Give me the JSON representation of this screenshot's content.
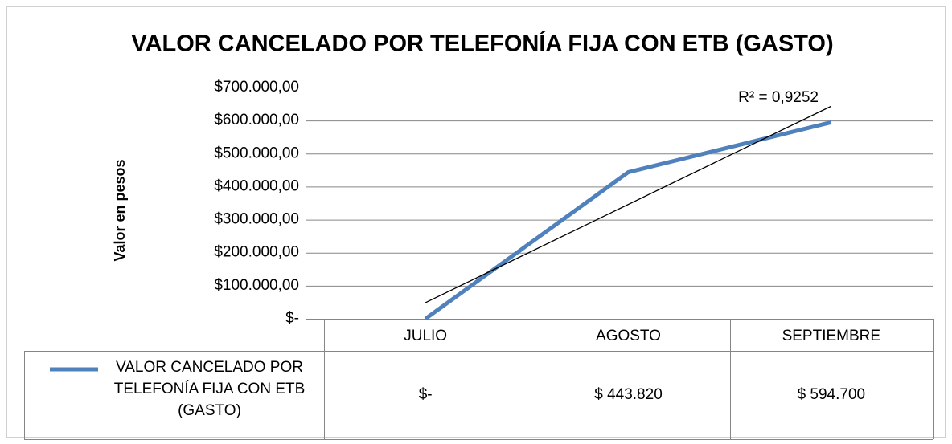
{
  "chart_data": {
    "type": "line",
    "title": "VALOR CANCELADO POR TELEFONÍA FIJA CON ETB (GASTO)",
    "y_label": "Valor en pesos",
    "categories": [
      "JULIO",
      "AGOSTO",
      "SEPTIEMBRE"
    ],
    "series": [
      {
        "name": "VALOR CANCELADO POR TELEFONÍA FIJA CON ETB (GASTO)",
        "color": "#4f81bd",
        "values": [
          0,
          443820,
          594700
        ],
        "value_labels": [
          "$-",
          "$ 443.820",
          "$ 594.700"
        ]
      }
    ],
    "ylim": [
      0,
      700000
    ],
    "yticks": [
      {
        "value": 0,
        "label": "$-"
      },
      {
        "value": 100000,
        "label": "$100.000,00"
      },
      {
        "value": 200000,
        "label": "$200.000,00"
      },
      {
        "value": 300000,
        "label": "$300.000,00"
      },
      {
        "value": 400000,
        "label": "$400.000,00"
      },
      {
        "value": 500000,
        "label": "$500.000,00"
      },
      {
        "value": 600000,
        "label": "$600.000,00"
      },
      {
        "value": 700000,
        "label": "$700.000,00"
      }
    ],
    "grid": true,
    "trendline": {
      "type": "linear",
      "annotation": "R² = 0,9252"
    }
  }
}
